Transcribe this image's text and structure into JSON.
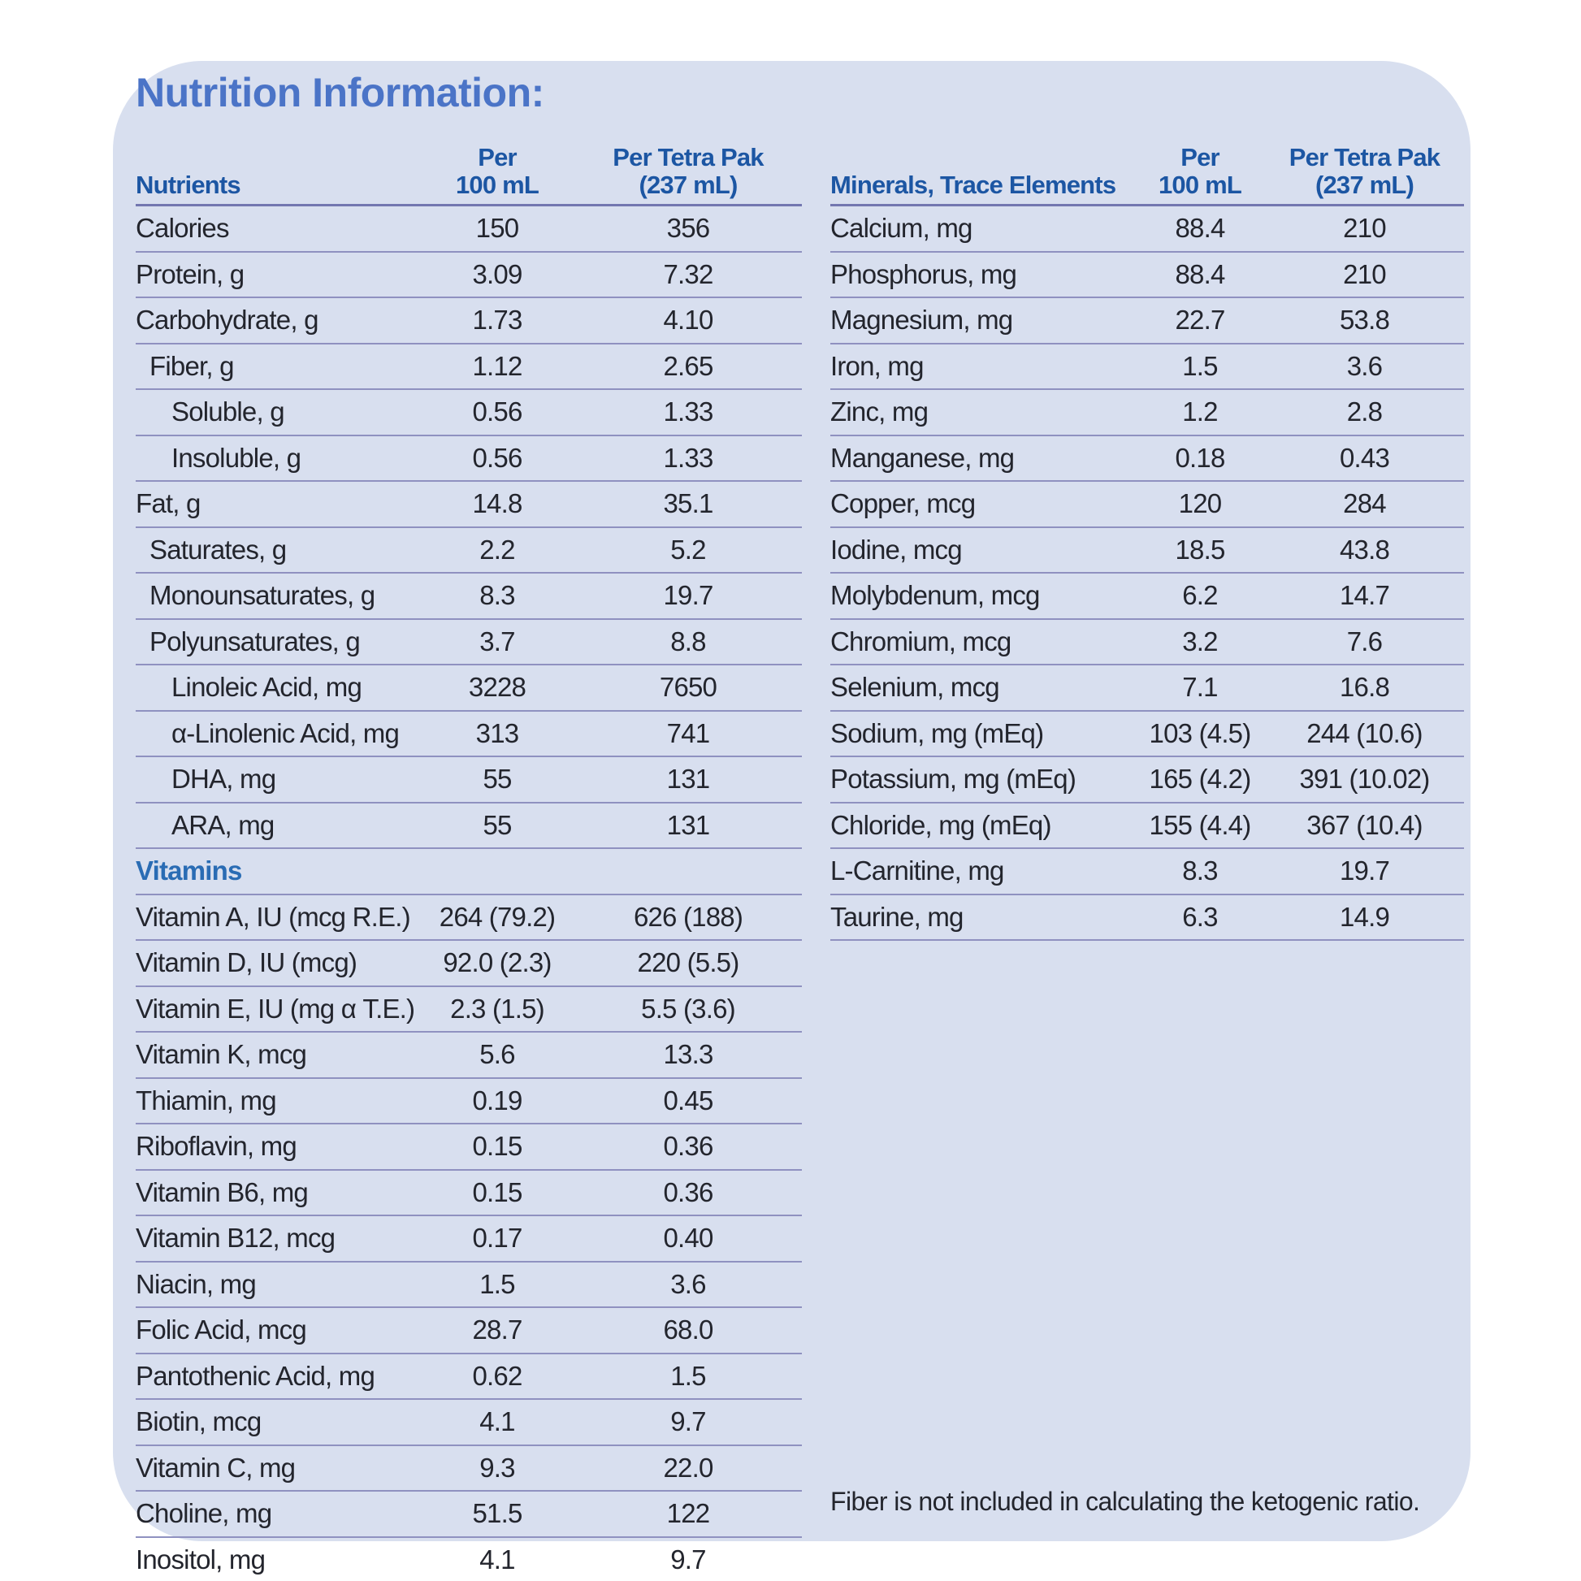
{
  "title": "Nutrition Information:",
  "left_table": {
    "header": {
      "label": "Nutrients",
      "per_line1": "Per",
      "per_line2": "100 mL",
      "pak_line1": "Per Tetra Pak",
      "pak_line2": "(237 mL)"
    },
    "rows": [
      {
        "label": "Calories",
        "indent": 0,
        "per100": "150",
        "perpak": "356"
      },
      {
        "label": "Protein, g",
        "indent": 0,
        "per100": "3.09",
        "perpak": "7.32"
      },
      {
        "label": "Carbohydrate, g",
        "indent": 0,
        "per100": "1.73",
        "perpak": "4.10"
      },
      {
        "label": "Fiber, g",
        "indent": 1,
        "per100": "1.12",
        "perpak": "2.65"
      },
      {
        "label": "Soluble, g",
        "indent": 2,
        "per100": "0.56",
        "perpak": "1.33"
      },
      {
        "label": "Insoluble, g",
        "indent": 2,
        "per100": "0.56",
        "perpak": "1.33"
      },
      {
        "label": "Fat, g",
        "indent": 0,
        "per100": "14.8",
        "perpak": "35.1"
      },
      {
        "label": "Saturates, g",
        "indent": 1,
        "per100": "2.2",
        "perpak": "5.2"
      },
      {
        "label": "Monounsaturates, g",
        "indent": 1,
        "per100": "8.3",
        "perpak": "19.7"
      },
      {
        "label": "Polyunsaturates, g",
        "indent": 1,
        "per100": "3.7",
        "perpak": "8.8"
      },
      {
        "label": "Linoleic Acid, mg",
        "indent": 2,
        "per100": "3228",
        "perpak": "7650"
      },
      {
        "label": "α-Linolenic Acid, mg",
        "indent": 2,
        "per100": "313",
        "perpak": "741"
      },
      {
        "label": "DHA, mg",
        "indent": 2,
        "per100": "55",
        "perpak": "131"
      },
      {
        "label": "ARA, mg",
        "indent": 2,
        "per100": "55",
        "perpak": "131"
      },
      {
        "label": "Vitamins",
        "section": true,
        "per100": "",
        "perpak": ""
      },
      {
        "label": "Vitamin A, IU (mcg R.E.)",
        "indent": 0,
        "per100": "264 (79.2)",
        "perpak": "626 (188)"
      },
      {
        "label": "Vitamin D, IU (mcg)",
        "indent": 0,
        "per100": "92.0 (2.3)",
        "perpak": "220 (5.5)"
      },
      {
        "label": "Vitamin E, IU (mg α T.E.)",
        "indent": 0,
        "per100": "2.3 (1.5)",
        "perpak": "5.5 (3.6)"
      },
      {
        "label": "Vitamin K, mcg",
        "indent": 0,
        "per100": "5.6",
        "perpak": "13.3"
      },
      {
        "label": "Thiamin, mg",
        "indent": 0,
        "per100": "0.19",
        "perpak": "0.45"
      },
      {
        "label": "Riboflavin, mg",
        "indent": 0,
        "per100": "0.15",
        "perpak": "0.36"
      },
      {
        "label": "Vitamin B6, mg",
        "indent": 0,
        "per100": "0.15",
        "perpak": "0.36"
      },
      {
        "label": "Vitamin B12, mcg",
        "indent": 0,
        "per100": "0.17",
        "perpak": "0.40"
      },
      {
        "label": "Niacin, mg",
        "indent": 0,
        "per100": "1.5",
        "perpak": "3.6"
      },
      {
        "label": "Folic Acid, mcg",
        "indent": 0,
        "per100": "28.7",
        "perpak": "68.0"
      },
      {
        "label": "Pantothenic Acid, mg",
        "indent": 0,
        "per100": "0.62",
        "perpak": "1.5"
      },
      {
        "label": "Biotin, mcg",
        "indent": 0,
        "per100": "4.1",
        "perpak": "9.7"
      },
      {
        "label": "Vitamin C, mg",
        "indent": 0,
        "per100": "9.3",
        "perpak": "22.0"
      },
      {
        "label": "Choline, mg",
        "indent": 0,
        "per100": "51.5",
        "perpak": "122"
      },
      {
        "label": "Inositol, mg",
        "indent": 0,
        "per100": "4.1",
        "perpak": "9.7"
      }
    ]
  },
  "right_table": {
    "header": {
      "label": "Minerals, Trace Elements",
      "per_line1": "Per",
      "per_line2": "100 mL",
      "pak_line1": "Per Tetra Pak",
      "pak_line2": "(237 mL)"
    },
    "rows": [
      {
        "label": "Calcium, mg",
        "indent": 0,
        "per100": "88.4",
        "perpak": "210"
      },
      {
        "label": "Phosphorus, mg",
        "indent": 0,
        "per100": "88.4",
        "perpak": "210"
      },
      {
        "label": "Magnesium, mg",
        "indent": 0,
        "per100": "22.7",
        "perpak": "53.8"
      },
      {
        "label": "Iron, mg",
        "indent": 0,
        "per100": "1.5",
        "perpak": "3.6"
      },
      {
        "label": "Zinc, mg",
        "indent": 0,
        "per100": "1.2",
        "perpak": "2.8"
      },
      {
        "label": "Manganese, mg",
        "indent": 0,
        "per100": "0.18",
        "perpak": "0.43"
      },
      {
        "label": "Copper, mcg",
        "indent": 0,
        "per100": "120",
        "perpak": "284"
      },
      {
        "label": "Iodine, mcg",
        "indent": 0,
        "per100": "18.5",
        "perpak": "43.8"
      },
      {
        "label": "Molybdenum, mcg",
        "indent": 0,
        "per100": "6.2",
        "perpak": "14.7"
      },
      {
        "label": "Chromium, mcg",
        "indent": 0,
        "per100": "3.2",
        "perpak": "7.6"
      },
      {
        "label": "Selenium, mcg",
        "indent": 0,
        "per100": "7.1",
        "perpak": "16.8"
      },
      {
        "label": "Sodium, mg (mEq)",
        "indent": 0,
        "per100": "103 (4.5)",
        "perpak": "244 (10.6)"
      },
      {
        "label": "Potassium, mg (mEq)",
        "indent": 0,
        "per100": "165 (4.2)",
        "perpak": "391 (10.02)"
      },
      {
        "label": "Chloride, mg (mEq)",
        "indent": 0,
        "per100": "155 (4.4)",
        "perpak": "367 (10.4)"
      },
      {
        "label": "L-Carnitine, mg",
        "indent": 0,
        "per100": "8.3",
        "perpak": "19.7"
      },
      {
        "label": "Taurine, mg",
        "indent": 0,
        "per100": "6.3",
        "perpak": "14.9"
      }
    ]
  },
  "footnote": "Fiber is not included in calculating the ketogenic ratio.",
  "colors": {
    "page_bg": "#ffffff",
    "card_bg": "#d8dfef",
    "title_blue": "#4b74c7",
    "header_blue": "#1c56a3",
    "section_blue": "#2a6cb4",
    "text": "#23252d",
    "separator": "#8f91c0",
    "separator_dark": "#7377b0"
  }
}
